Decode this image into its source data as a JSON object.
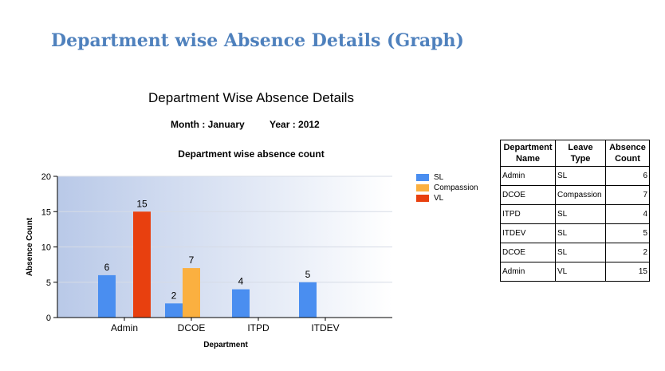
{
  "page_heading": "Department wise Absence Details (Graph)",
  "chart_data": {
    "type": "bar",
    "title": "Department Wise Absence Details",
    "month_label": "Month : January",
    "year_label": "Year : 2012",
    "subtitle": "Department wise absence count",
    "xlabel": "Department",
    "ylabel": "Absence Count",
    "ylim": [
      0,
      20
    ],
    "yticks": [
      0,
      5,
      10,
      15,
      20
    ],
    "grid": true,
    "legend_position": "right",
    "categories": [
      "Admin",
      "DCOE",
      "ITPD",
      "ITDEV"
    ],
    "series": [
      {
        "name": "SL",
        "color": "#4a8ef0",
        "values": [
          6,
          2,
          4,
          5
        ]
      },
      {
        "name": "Compassion",
        "color": "#fbb040",
        "values": [
          null,
          7,
          null,
          null
        ]
      },
      {
        "name": "VL",
        "color": "#e8400f",
        "values": [
          15,
          null,
          null,
          null
        ]
      }
    ]
  },
  "table": {
    "headers": [
      "Department Name",
      "Leave Type",
      "Absence Count"
    ],
    "rows": [
      [
        "Admin",
        "SL",
        "6"
      ],
      [
        "DCOE",
        "Compassion",
        "7"
      ],
      [
        "ITPD",
        "SL",
        "4"
      ],
      [
        "ITDEV",
        "SL",
        "5"
      ],
      [
        "DCOE",
        "SL",
        "2"
      ],
      [
        "Admin",
        "VL",
        "15"
      ]
    ]
  }
}
